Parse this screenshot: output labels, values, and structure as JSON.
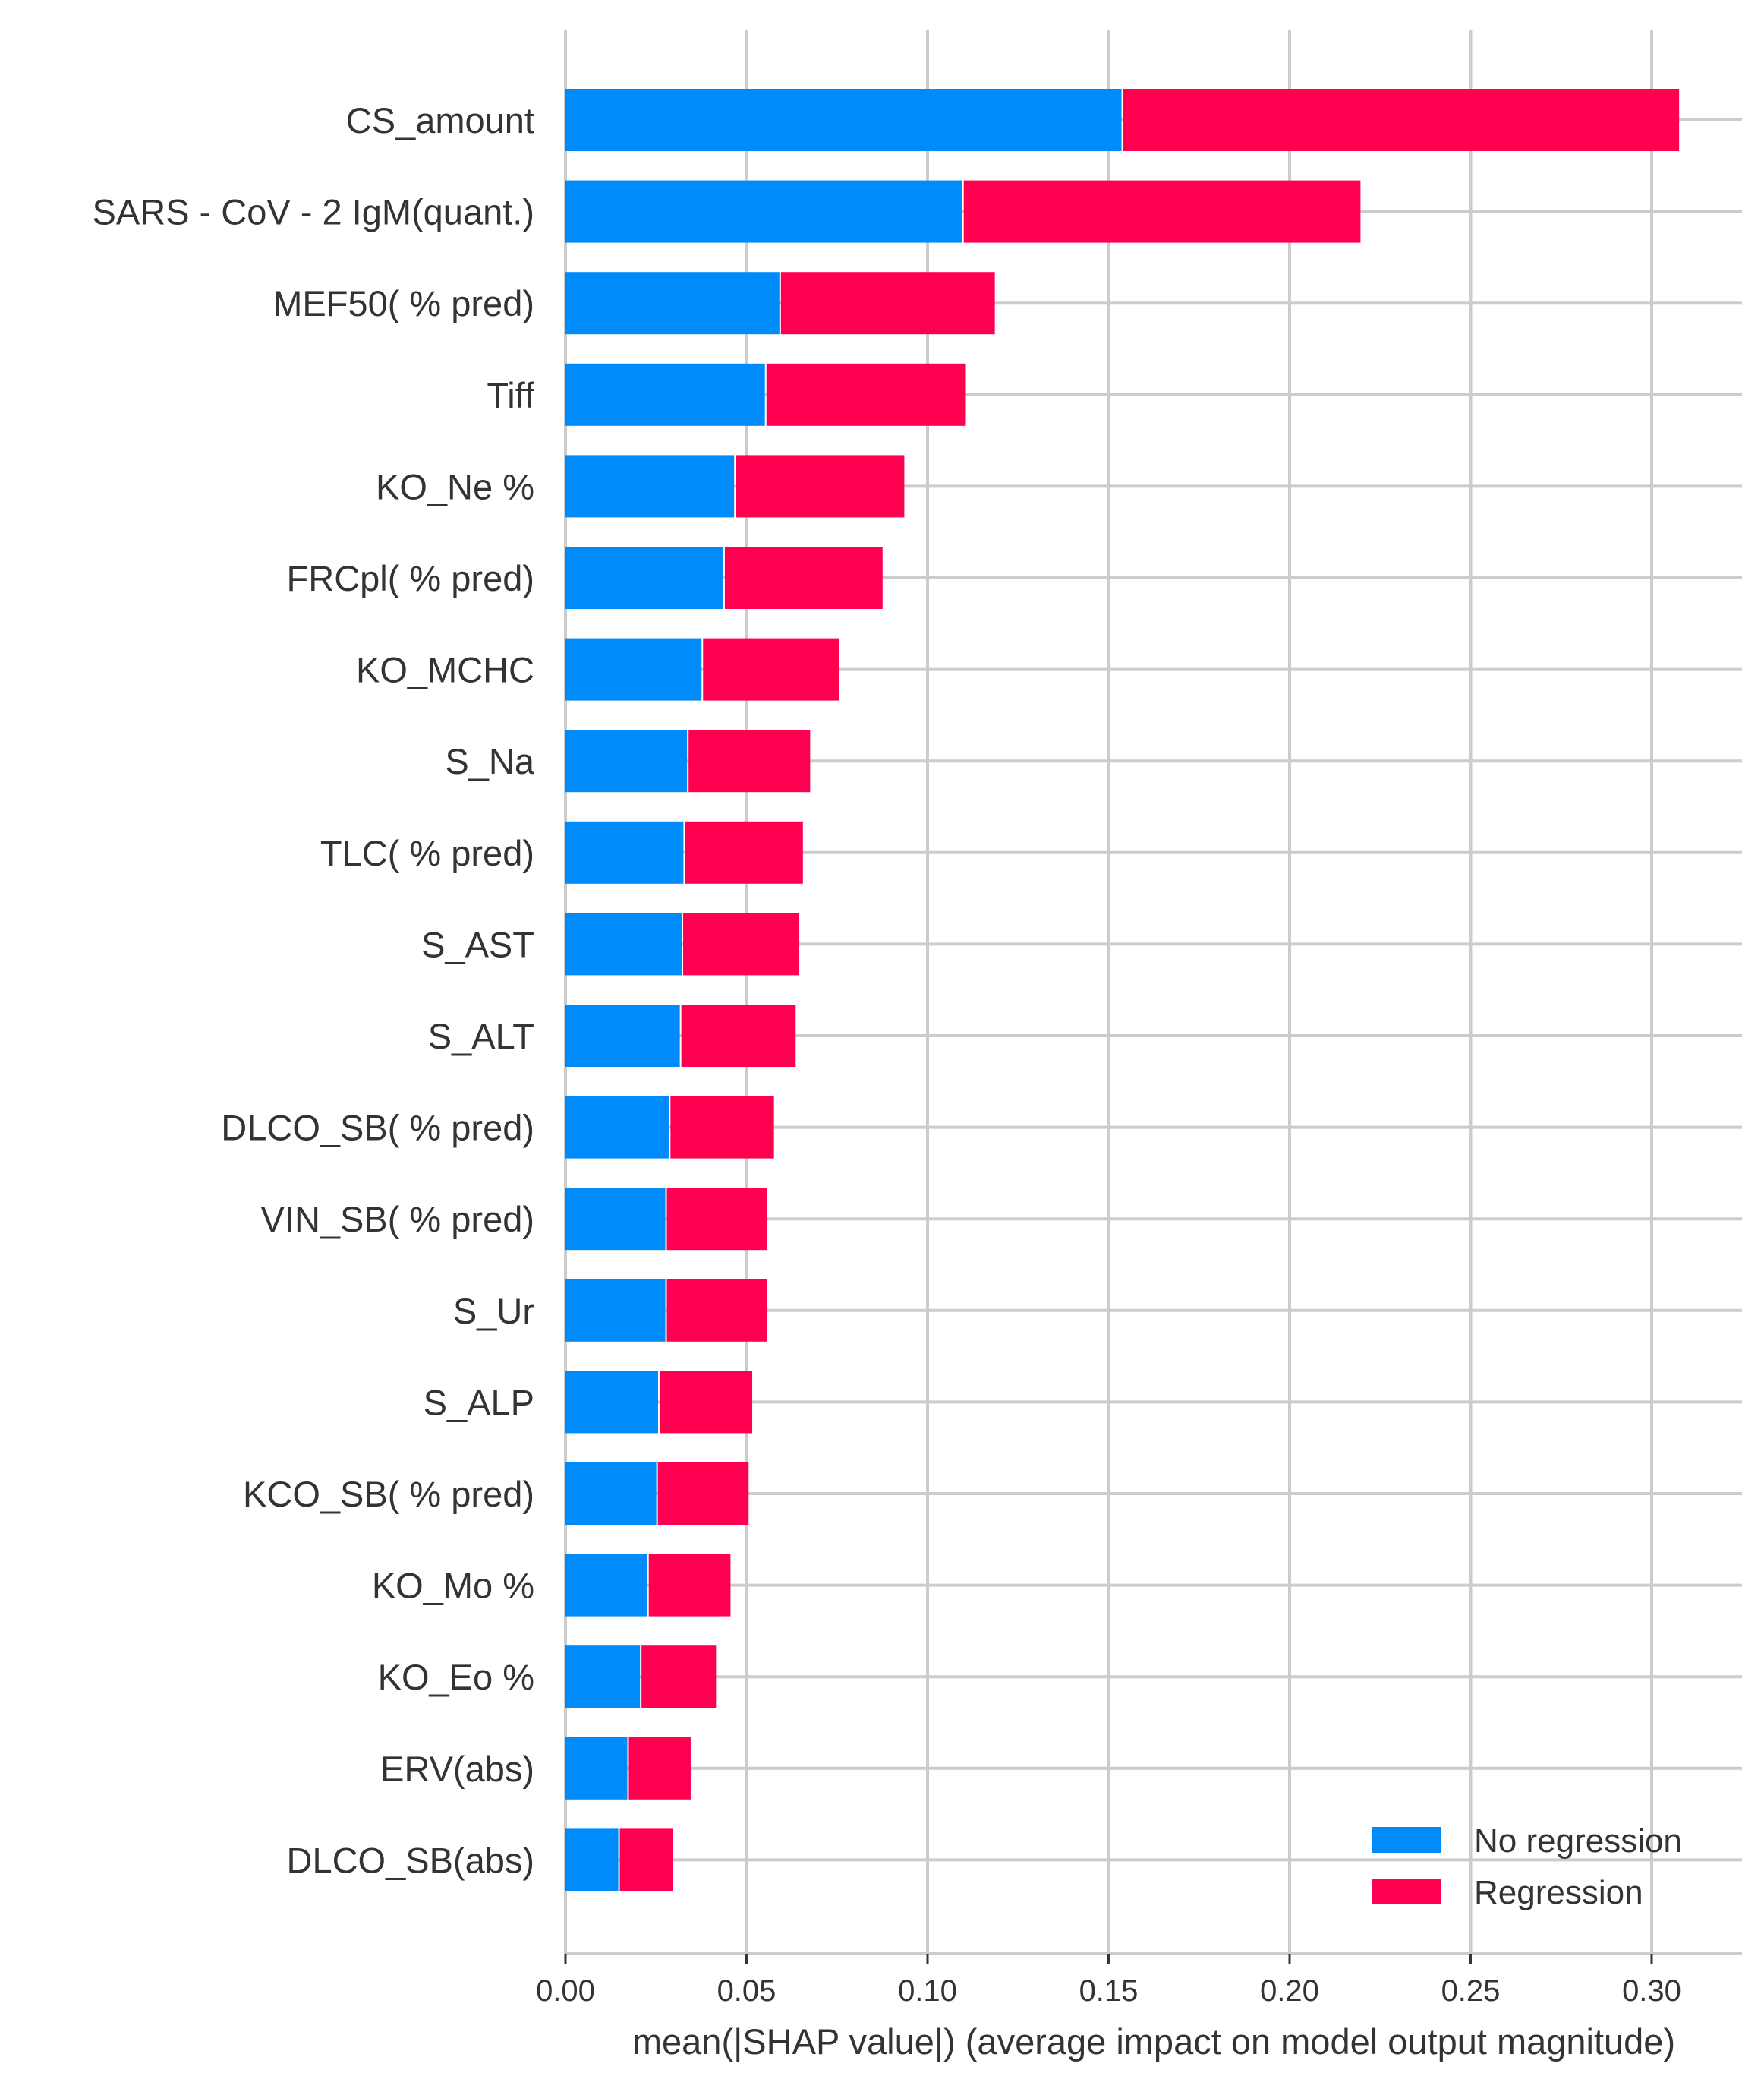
{
  "chart_data": {
    "type": "bar",
    "subtype": "stacked-horizontal",
    "title": "",
    "xlabel": "mean(|SHAP value|) (average impact on model output magnitude)",
    "ylabel": "",
    "xlim": [
      0,
      0.325
    ],
    "xticks": [
      0.0,
      0.05,
      0.1,
      0.15,
      0.2,
      0.25,
      0.3
    ],
    "xtick_labels": [
      "0.00",
      "0.05",
      "0.10",
      "0.15",
      "0.20",
      "0.25",
      "0.30"
    ],
    "grid": "vertical",
    "legend_position": "bottom-right",
    "categories": [
      "CS_amount",
      "SARS - CoV - 2 IgM(quant.)",
      "MEF50( % pred)",
      "Tiff",
      "KO_Ne %",
      "FRCpl( % pred)",
      "KO_MCHC",
      "S_Na",
      "TLC( % pred)",
      "S_AST",
      "S_ALT",
      "DLCO_SB( % pred)",
      "VIN_SB( % pred)",
      "S_Ur",
      "S_ALP",
      "KCO_SB( % pred)",
      "KO_Mo %",
      "KO_Eo %",
      "ERV(abs)",
      "DLCO_SB(abs)"
    ],
    "series": [
      {
        "name": "No regression",
        "color": "#008bfb",
        "values": [
          0.154,
          0.11,
          0.0595,
          0.0555,
          0.047,
          0.044,
          0.038,
          0.034,
          0.033,
          0.0325,
          0.032,
          0.029,
          0.028,
          0.028,
          0.026,
          0.0255,
          0.023,
          0.021,
          0.0175,
          0.015
        ]
      },
      {
        "name": "Regression",
        "color": "#ff0051",
        "values": [
          0.154,
          0.11,
          0.0595,
          0.0555,
          0.047,
          0.044,
          0.038,
          0.034,
          0.033,
          0.0325,
          0.032,
          0.029,
          0.028,
          0.028,
          0.026,
          0.0255,
          0.023,
          0.021,
          0.0175,
          0.015
        ]
      }
    ]
  }
}
